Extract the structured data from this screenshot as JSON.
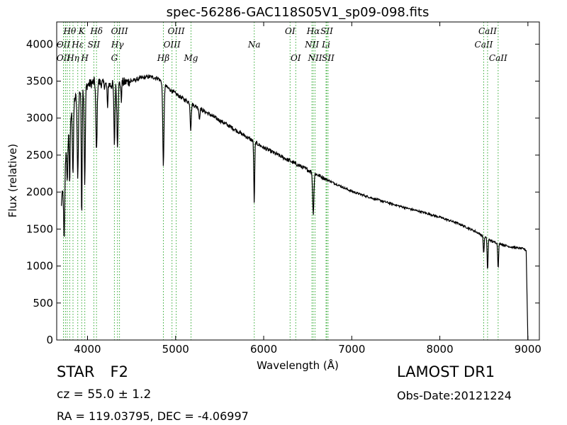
{
  "chart_data": {
    "type": "line",
    "title": "spec-56286-GAC118S05V1_sp09-098.fits",
    "xlabel": "Wavelength (Å)",
    "ylabel": "Flux (relative)",
    "xlim": [
      3650,
      9130
    ],
    "ylim": [
      0,
      4300
    ],
    "xticks": [
      4000,
      5000,
      6000,
      7000,
      8000,
      9000
    ],
    "yticks": [
      0,
      500,
      1000,
      1500,
      2000,
      2500,
      3000,
      3500,
      4000
    ],
    "grid": false,
    "series_color": "#000000",
    "line_color": "#33aa33",
    "continuum": [
      [
        3700,
        1800
      ],
      [
        3730,
        2150
      ],
      [
        3760,
        2600
      ],
      [
        3800,
        2950
      ],
      [
        3850,
        3250
      ],
      [
        3900,
        3350
      ],
      [
        4000,
        3450
      ],
      [
        4100,
        3500
      ],
      [
        4200,
        3450
      ],
      [
        4300,
        3450
      ],
      [
        4400,
        3480
      ],
      [
        4500,
        3500
      ],
      [
        4600,
        3540
      ],
      [
        4700,
        3560
      ],
      [
        4800,
        3540
      ],
      [
        4900,
        3420
      ],
      [
        5000,
        3330
      ],
      [
        5100,
        3250
      ],
      [
        5200,
        3180
      ],
      [
        5400,
        3040
      ],
      [
        5600,
        2900
      ],
      [
        5800,
        2750
      ],
      [
        6000,
        2600
      ],
      [
        6200,
        2480
      ],
      [
        6400,
        2360
      ],
      [
        6600,
        2240
      ],
      [
        6800,
        2120
      ],
      [
        7000,
        2010
      ],
      [
        7200,
        1930
      ],
      [
        7400,
        1860
      ],
      [
        7600,
        1790
      ],
      [
        7800,
        1730
      ],
      [
        8000,
        1660
      ],
      [
        8200,
        1580
      ],
      [
        8400,
        1470
      ],
      [
        8600,
        1330
      ],
      [
        8800,
        1260
      ],
      [
        8960,
        1230
      ],
      [
        8980,
        1210
      ]
    ],
    "absorption": [
      {
        "x": 3735,
        "depth": 900,
        "width": 6
      },
      {
        "x": 3770,
        "depth": 600,
        "width": 5
      },
      {
        "x": 3798,
        "depth": 800,
        "width": 5
      },
      {
        "x": 3835,
        "depth": 900,
        "width": 6
      },
      {
        "x": 3889,
        "depth": 1100,
        "width": 7
      },
      {
        "x": 3934,
        "depth": 1700,
        "width": 5
      },
      {
        "x": 3969,
        "depth": 1300,
        "width": 6
      },
      {
        "x": 4102,
        "depth": 950,
        "width": 7
      },
      {
        "x": 4227,
        "depth": 350,
        "width": 4
      },
      {
        "x": 4305,
        "depth": 800,
        "width": 6
      },
      {
        "x": 4340,
        "depth": 800,
        "width": 7
      },
      {
        "x": 4383,
        "depth": 250,
        "width": 4
      },
      {
        "x": 4861,
        "depth": 1100,
        "width": 7
      },
      {
        "x": 5172,
        "depth": 350,
        "width": 6
      },
      {
        "x": 5270,
        "depth": 150,
        "width": 5
      },
      {
        "x": 5893,
        "depth": 830,
        "width": 5
      },
      {
        "x": 6563,
        "depth": 550,
        "width": 7
      },
      {
        "x": 8498,
        "depth": 230,
        "width": 5
      },
      {
        "x": 8542,
        "depth": 430,
        "width": 5
      },
      {
        "x": 8662,
        "depth": 330,
        "width": 5
      }
    ],
    "cutoff": {
      "start": 8980,
      "end": 9000,
      "value": 0
    },
    "spectral_lines": [
      {
        "x": 3727,
        "label": "OII",
        "row": 1
      },
      {
        "x": 3727,
        "label": "OII",
        "row": 2
      },
      {
        "x": 3750,
        "label": "",
        "row": 0
      },
      {
        "x": 3770,
        "label": "",
        "row": 0
      },
      {
        "x": 3798,
        "label": "Hθ",
        "row": 0
      },
      {
        "x": 3835,
        "label": "Hη",
        "row": 2
      },
      {
        "x": 3889,
        "label": "Hε",
        "row": 1
      },
      {
        "x": 3934,
        "label": "K",
        "row": 0
      },
      {
        "x": 3969,
        "label": "H",
        "row": 2
      },
      {
        "x": 4072,
        "label": "SII",
        "row": 1
      },
      {
        "x": 4102,
        "label": "Hδ",
        "row": 0
      },
      {
        "x": 4305,
        "label": "G",
        "row": 2
      },
      {
        "x": 4340,
        "label": "Hγ",
        "row": 1
      },
      {
        "x": 4363,
        "label": "OIII",
        "row": 0
      },
      {
        "x": 4861,
        "label": "Hβ",
        "row": 2
      },
      {
        "x": 4959,
        "label": "OIII",
        "row": 1
      },
      {
        "x": 5007,
        "label": "OIII",
        "row": 0
      },
      {
        "x": 5175,
        "label": "Mg",
        "row": 2
      },
      {
        "x": 5893,
        "label": "Na",
        "row": 1
      },
      {
        "x": 6300,
        "label": "OI",
        "row": 0
      },
      {
        "x": 6364,
        "label": "OI",
        "row": 2
      },
      {
        "x": 6548,
        "label": "NII",
        "row": 1
      },
      {
        "x": 6563,
        "label": "Hα",
        "row": 0
      },
      {
        "x": 6583,
        "label": "NII",
        "row": 2
      },
      {
        "x": 6708,
        "label": "Li",
        "row": 1
      },
      {
        "x": 6716,
        "label": "SII",
        "row": 0
      },
      {
        "x": 6731,
        "label": "SII",
        "row": 2
      },
      {
        "x": 8498,
        "label": "CaII",
        "row": 1
      },
      {
        "x": 8542,
        "label": "CaII",
        "row": 0
      },
      {
        "x": 8662,
        "label": "CaII",
        "row": 2
      }
    ]
  },
  "info": {
    "object_type": "STAR",
    "subclass": "F2",
    "redshift": "cz = 55.0  ± 1.2",
    "coordinates": "RA = 119.03795, DEC = -4.06997",
    "survey": "LAMOST DR1",
    "obs_date": "Obs-Date:20121224"
  }
}
